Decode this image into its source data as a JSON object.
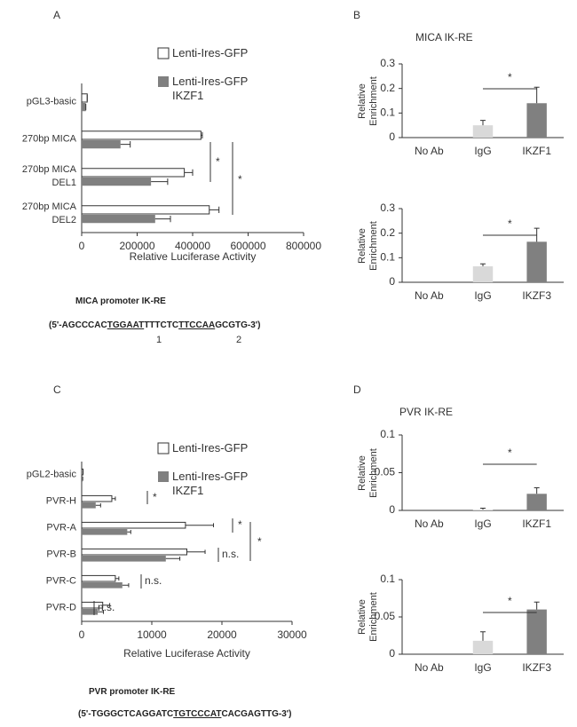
{
  "chart_data": [
    {
      "type": "hbar",
      "panel": "A",
      "categories": [
        "pGL3-basic",
        "270bp MICA",
        "270bp MICA DEL1",
        "270bp MICA DEL2"
      ],
      "series": [
        {
          "name": "Lenti-Ires-GFP",
          "color": "#ffffff",
          "values": [
            20000,
            430000,
            370000,
            460000
          ],
          "errors": [
            0,
            5000,
            30000,
            35000
          ]
        },
        {
          "name": "Lenti-Ires-GFP IKZF1",
          "color": "#808080",
          "values": [
            15000,
            140000,
            250000,
            265000
          ],
          "errors": [
            0,
            35000,
            60000,
            55000
          ]
        }
      ],
      "xlim": [
        0,
        800000
      ],
      "xticks": [
        0,
        200000,
        400000,
        600000,
        800000
      ],
      "xlabel": "Relative Luciferase Activity",
      "significance": [
        "*",
        "*"
      ],
      "promoter": {
        "title": "MICA promoter IK-RE",
        "sequence": [
          "(5'-AGCCCAC",
          "TGGAAT",
          "TTTCTC",
          "TTCCAA",
          "GCGTG-3')"
        ],
        "sites": [
          "1",
          "2"
        ]
      }
    },
    {
      "type": "bar",
      "panel": "B",
      "title": "MICA IK-RE",
      "categories": [
        "No Ab",
        "IgG",
        "IKZF1"
      ],
      "values": [
        0,
        0.05,
        0.14
      ],
      "errors": [
        0,
        0.02,
        0.065
      ],
      "colors": [
        "#ffffff",
        "#d9d9d9",
        "#808080"
      ],
      "ylim": [
        0,
        0.3
      ],
      "yticks": [
        0,
        0.1,
        0.2,
        0.3
      ],
      "ylabel": "Relative Enrichment",
      "significance": [
        "*"
      ]
    },
    {
      "type": "bar",
      "categories": [
        "No Ab",
        "IgG",
        "IKZF3"
      ],
      "values": [
        0,
        0.065,
        0.165
      ],
      "errors": [
        0,
        0.01,
        0.055
      ],
      "colors": [
        "#ffffff",
        "#d9d9d9",
        "#808080"
      ],
      "ylim": [
        0,
        0.3
      ],
      "yticks": [
        0,
        0.1,
        0.2,
        0.3
      ],
      "ylabel": "Relative Enrichment",
      "significance": [
        "*"
      ]
    },
    {
      "type": "hbar",
      "panel": "C",
      "categories": [
        "pGL2-basic",
        "PVR-H",
        "PVR-A",
        "PVR-B",
        "PVR-C",
        "PVR-D"
      ],
      "series": [
        {
          "name": "Lenti-Ires-GFP",
          "color": "#ffffff",
          "values": [
            200,
            4300,
            14800,
            15000,
            4800,
            3000
          ],
          "errors": [
            0,
            500,
            4000,
            2600,
            500,
            1000
          ]
        },
        {
          "name": "Lenti-Ires-GFP IKZF1",
          "color": "#808080",
          "values": [
            150,
            2000,
            6500,
            12000,
            5800,
            2300
          ],
          "errors": [
            0,
            700,
            500,
            2000,
            900,
            800
          ]
        }
      ],
      "xlim": [
        0,
        30000
      ],
      "xticks": [
        0,
        10000,
        20000,
        30000
      ],
      "xlabel": "Relative Luciferase Activity",
      "significance": [
        "*",
        "*",
        "n.s.",
        "*",
        "n.s.",
        "n.s."
      ],
      "promoter": {
        "title": "PVR promoter IK-RE",
        "sequence": [
          "(5'-TGGGCTCAGGATC",
          "TGTCCCAT",
          "CACGAGTTG-3')"
        ]
      }
    },
    {
      "type": "bar",
      "panel": "D",
      "title": "PVR IK-RE",
      "categories": [
        "No Ab",
        "IgG",
        "IKZF1"
      ],
      "values": [
        0,
        0.001,
        0.022
      ],
      "errors": [
        0,
        0.002,
        0.008
      ],
      "colors": [
        "#ffffff",
        "#d9d9d9",
        "#808080"
      ],
      "ylim": [
        0,
        0.1
      ],
      "yticks": [
        0,
        0.05,
        0.1
      ],
      "ylabel": "Relative Enrichment",
      "significance": [
        "*"
      ]
    },
    {
      "type": "bar",
      "categories": [
        "No Ab",
        "IgG",
        "IKZF3"
      ],
      "values": [
        0,
        0.018,
        0.06
      ],
      "errors": [
        0,
        0.012,
        0.01
      ],
      "colors": [
        "#ffffff",
        "#d9d9d9",
        "#808080"
      ],
      "ylim": [
        0,
        0.1
      ],
      "yticks": [
        0,
        0.05,
        0.1
      ],
      "ylabel": "Relative Enrichment",
      "significance": [
        "*"
      ]
    }
  ]
}
